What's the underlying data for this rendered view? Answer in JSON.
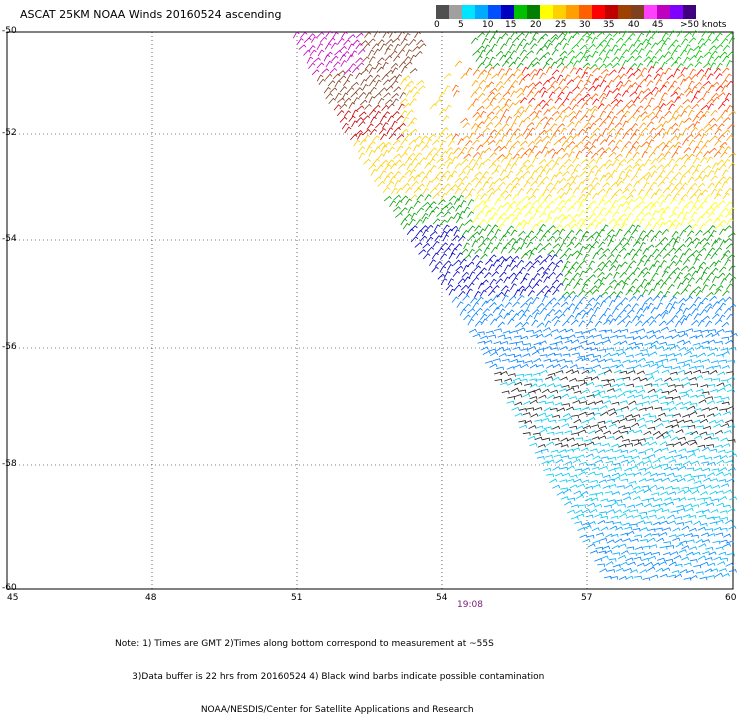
{
  "title": "ASCAT 25KM NOAA Winds 20160524 ascending",
  "color_scale": {
    "colors": [
      "#505050",
      "#a0a0a0",
      "#00e5ff",
      "#00aaff",
      "#0050ff",
      "#0000c0",
      "#00c000",
      "#008000",
      "#ffff00",
      "#ffd000",
      "#ffa000",
      "#ff6000",
      "#ff0000",
      "#c00000",
      "#a04000",
      "#804020",
      "#ff40ff",
      "#c000c0",
      "#8000ff",
      "#400080"
    ],
    "labels": [
      "0",
      "5",
      "10",
      "15",
      "20",
      "25",
      "30",
      "35",
      "40",
      "45",
      ">50 knots"
    ]
  },
  "axes": {
    "y_labels": [
      "-50",
      "-52",
      "-54",
      "-56",
      "-58",
      "-60"
    ],
    "x_labels": [
      "45",
      "48",
      "51",
      "54",
      "57",
      "60"
    ]
  },
  "pass_time": "19:08",
  "notes": [
    "Note: 1) Times are GMT 2)Times along bottom correspond to measurement at ~55S",
    "      3)Data buffer is 22 hrs from 20160524 4) Black wind barbs indicate possible contamination",
    "                              NOAA/NESDIS/Center for Satellite Applications and Research"
  ]
}
